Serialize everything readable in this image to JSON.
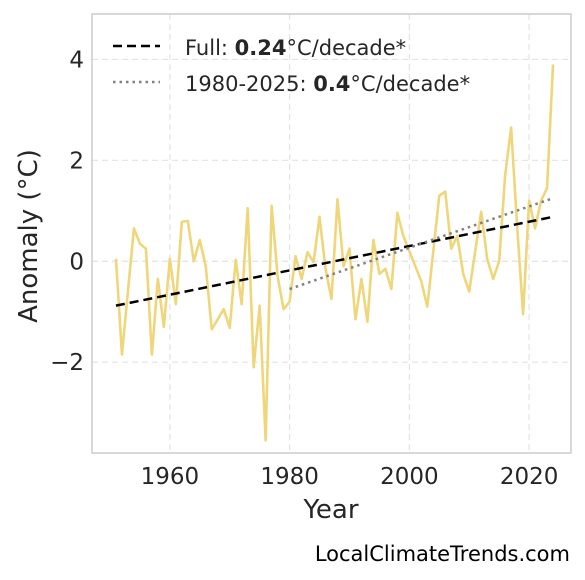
{
  "chart_data": {
    "type": "line",
    "xlabel": "Year",
    "ylabel": "Anomaly (°C)",
    "xlim": [
      1947,
      2027
    ],
    "ylim": [
      -3.8,
      4.9
    ],
    "xticks": [
      1960,
      1980,
      2000,
      2020
    ],
    "yticks": [
      -2,
      0,
      2,
      4
    ],
    "ytick_labels": [
      "−2",
      "0",
      "2",
      "4"
    ],
    "grid": true,
    "legend_position": "top-left",
    "series": [
      {
        "name": "anomaly",
        "color": "#f0d67a",
        "style": "solid",
        "x": [
          1951,
          1952,
          1953,
          1954,
          1955,
          1956,
          1957,
          1958,
          1959,
          1960,
          1961,
          1962,
          1963,
          1964,
          1965,
          1966,
          1967,
          1968,
          1969,
          1970,
          1971,
          1972,
          1973,
          1974,
          1975,
          1976,
          1977,
          1978,
          1979,
          1980,
          1981,
          1982,
          1983,
          1984,
          1985,
          1986,
          1987,
          1988,
          1989,
          1990,
          1991,
          1992,
          1993,
          1994,
          1995,
          1996,
          1997,
          1998,
          1999,
          2000,
          2001,
          2002,
          2003,
          2004,
          2005,
          2006,
          2007,
          2008,
          2009,
          2010,
          2011,
          2012,
          2013,
          2014,
          2015,
          2016,
          2017,
          2018,
          2019,
          2020,
          2021,
          2022,
          2023,
          2024
        ],
        "y": [
          0.05,
          -1.85,
          -0.6,
          0.65,
          0.35,
          0.25,
          -1.85,
          -0.35,
          -1.3,
          0.05,
          -0.85,
          0.78,
          0.8,
          0.0,
          0.42,
          -0.1,
          -1.35,
          -1.15,
          -0.95,
          -1.32,
          0.03,
          -0.85,
          1.05,
          -2.1,
          -0.88,
          -3.55,
          1.1,
          -0.3,
          -0.95,
          -0.8,
          0.1,
          -0.35,
          0.18,
          -0.02,
          0.88,
          -0.15,
          -0.75,
          1.23,
          -0.1,
          0.25,
          -1.15,
          -0.35,
          -1.2,
          0.42,
          -0.25,
          -0.15,
          -0.55,
          0.96,
          0.5,
          0.2,
          -0.1,
          -0.4,
          -0.9,
          0.2,
          1.3,
          1.38,
          0.25,
          0.5,
          -0.25,
          -0.6,
          0.2,
          0.98,
          0.05,
          -0.35,
          0.0,
          1.7,
          2.65,
          0.7,
          -1.05,
          1.2,
          0.65,
          1.2,
          1.45,
          3.9
        ]
      },
      {
        "name": "Full trend",
        "color": "#000000",
        "style": "dashed",
        "x": [
          1951,
          2024
        ],
        "y": [
          -0.88,
          0.88
        ]
      },
      {
        "name": "1980-2025 trend",
        "color": "#808080",
        "style": "dotted",
        "x": [
          1980,
          2024
        ],
        "y": [
          -0.55,
          1.25
        ]
      }
    ],
    "legend": [
      {
        "prefix": "Full: ",
        "value": "0.24",
        "suffix": "°C/decade*",
        "style": "dashed",
        "color": "#000000"
      },
      {
        "prefix": "1980-2025: ",
        "value": "0.4",
        "suffix": "°C/decade*",
        "style": "dotted",
        "color": "#808080"
      }
    ]
  },
  "credit": "LocalClimateTrends.com"
}
